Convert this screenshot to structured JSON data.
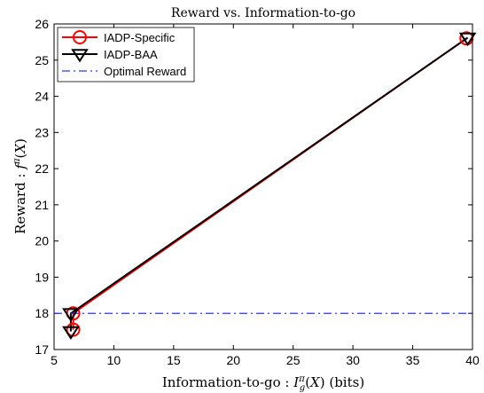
{
  "chart_data": {
    "type": "line",
    "title": "Reward vs. Information-to-go",
    "xlabel": "Information-to-go : I_g^π(X) (bits)",
    "ylabel": "Reward : f^π(X)",
    "xlim": [
      5,
      40
    ],
    "ylim": [
      17,
      26
    ],
    "x_ticks": [
      5,
      10,
      15,
      20,
      25,
      30,
      35,
      40
    ],
    "y_ticks": [
      17,
      18,
      19,
      20,
      21,
      22,
      23,
      24,
      25,
      26
    ],
    "grid": false,
    "legend_position": "top-left",
    "series": [
      {
        "name": "IADP-Specific",
        "color": "#ff0000",
        "marker": "circle",
        "line": "solid",
        "points": [
          {
            "x": 6.6,
            "y": 17.55
          },
          {
            "x": 6.6,
            "y": 18.0
          },
          {
            "x": 39.5,
            "y": 25.6
          }
        ]
      },
      {
        "name": "IADP-BAA",
        "color": "#000000",
        "marker": "triangle-down",
        "line": "solid",
        "points": [
          {
            "x": 6.4,
            "y": 17.5
          },
          {
            "x": 6.4,
            "y": 18.0
          },
          {
            "x": 39.6,
            "y": 25.62
          }
        ]
      },
      {
        "name": "Optimal Reward",
        "color": "#3333ff",
        "marker": "none",
        "line": "dash-dot",
        "points": [
          {
            "x": 5,
            "y": 18.0
          },
          {
            "x": 40,
            "y": 18.0
          }
        ]
      }
    ]
  }
}
